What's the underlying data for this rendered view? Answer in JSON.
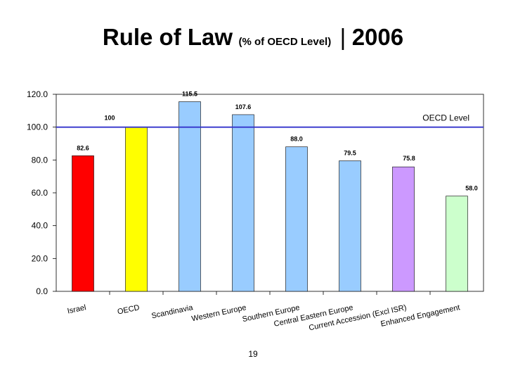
{
  "title": {
    "main": "Rule of Law",
    "sub": "(% of OECD Level)",
    "separator": "|",
    "year": "2006"
  },
  "page_number": "19",
  "chart_data": {
    "type": "bar",
    "categories": [
      "Israel",
      "OECD",
      "Scandinavia",
      "Western Europe",
      "Southern Europe",
      "Central Eastern Europe",
      "Current Accession (Excl ISR)",
      "Enhanced Engagement"
    ],
    "values": [
      82.6,
      100,
      115.5,
      107.6,
      88.0,
      79.5,
      75.8,
      58.0
    ],
    "value_labels": [
      "82.6",
      "100",
      "115.5",
      "107.6",
      "88.0",
      "79.5",
      "75.8",
      "58.0"
    ],
    "bar_colors": [
      "#ff0000",
      "#ffff00",
      "#99ccff",
      "#99ccff",
      "#99ccff",
      "#99ccff",
      "#cc99ff",
      "#ccffcc"
    ],
    "ylim": [
      0,
      120
    ],
    "yticks": [
      "0.0",
      "20.0",
      "40.0",
      "60.0",
      "80.0",
      "100.0",
      "120.0"
    ],
    "reference_line": {
      "value": 100,
      "label": "OECD Level",
      "color": "#3333cc"
    },
    "xlabel": "",
    "ylabel": "",
    "grid": false
  }
}
